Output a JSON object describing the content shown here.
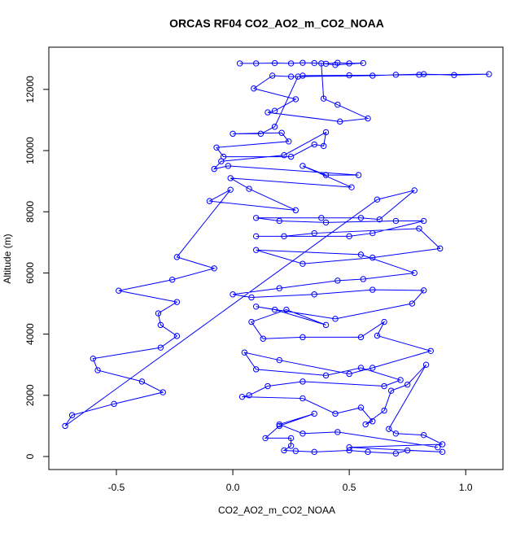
{
  "chart_data": {
    "type": "line",
    "title": "ORCAS RF04 CO2_AO2_m_CO2_NOAA",
    "x_label": "CO2_AO2_m_CO2_NOAA",
    "y_label": "Altitude (m)",
    "color": "#0000ff",
    "xlim": [
      -0.79,
      1.16
    ],
    "ylim": [
      -426,
      13380
    ],
    "xticks": [
      -0.5,
      {
        "value": 0,
        "label": "0.0"
      },
      0.5,
      {
        "value": 1,
        "label": "1.0"
      }
    ],
    "yticks": [
      0,
      2000,
      4000,
      6000,
      8000,
      10000,
      12000
    ],
    "x": [
      0.03,
      0.1,
      0.18,
      0.25,
      0.3,
      0.35,
      0.4,
      0.45,
      0.5,
      0.56,
      0.44,
      0.38,
      0.39,
      0.45,
      0.58,
      0.46,
      0.15,
      0.18,
      0.27,
      0.09,
      0.17,
      0.25,
      0.6,
      0.7,
      0.82,
      0.95,
      1.1,
      0.8,
      0.5,
      0.3,
      0.28,
      0.18,
      0.12,
      0.0,
      0.21,
      0.24,
      -0.07,
      -0.04,
      0.25,
      0.35,
      0.39,
      0.4,
      0.22,
      -0.05,
      -0.08,
      -0.02,
      0.54,
      0.4,
      0.3,
      0.51,
      -0.01,
      0.07,
      0.27,
      -0.1,
      -0.01,
      -0.24,
      -0.08,
      -0.26,
      -0.49,
      -0.24,
      -0.32,
      -0.31,
      -0.24,
      -0.31,
      -0.6,
      -0.58,
      -0.39,
      -0.3,
      -0.51,
      -0.69,
      -0.72,
      0.62,
      0.78,
      0.63,
      0.55,
      0.38,
      0.1,
      0.2,
      0.4,
      0.7,
      0.82,
      0.6,
      0.5,
      0.1,
      0.22,
      0.35,
      0.8,
      0.89,
      0.6,
      0.3,
      0.1,
      0.55,
      0.78,
      0.56,
      0.45,
      0.2,
      0.0,
      0.08,
      0.35,
      0.6,
      0.82,
      0.77,
      0.44,
      0.1,
      0.18,
      0.4,
      0.23,
      0.08,
      0.13,
      0.3,
      0.55,
      0.65,
      0.62,
      0.85,
      0.6,
      0.5,
      0.2,
      0.05,
      0.1,
      0.4,
      0.55,
      0.72,
      0.65,
      0.3,
      0.15,
      0.07,
      0.04,
      0.3,
      0.44,
      0.55,
      0.6,
      0.57,
      0.65,
      0.68,
      0.75,
      0.83,
      0.67,
      0.7,
      0.82,
      0.9,
      0.5,
      0.9,
      0.75,
      0.7,
      0.58,
      0.5,
      0.35,
      0.27,
      0.22,
      0.25,
      0.25,
      0.14,
      0.2,
      0.35,
      0.2,
      0.3,
      0.45,
      0.88
    ],
    "y": [
      12850,
      12850,
      12860,
      12850,
      12870,
      12860,
      12840,
      12870,
      12850,
      12860,
      12800,
      12850,
      11700,
      11500,
      11050,
      10950,
      11250,
      11300,
      11680,
      12030,
      12450,
      12420,
      12450,
      12480,
      12500,
      12470,
      12500,
      12480,
      12460,
      12450,
      12420,
      10780,
      10550,
      10550,
      10580,
      10300,
      10100,
      9800,
      9800,
      10200,
      10150,
      10600,
      9850,
      9650,
      9400,
      9500,
      9200,
      9200,
      9500,
      8800,
      9100,
      8750,
      8050,
      8350,
      8720,
      6520,
      6150,
      5780,
      5420,
      5050,
      4680,
      4300,
      3940,
      3560,
      3200,
      2820,
      2450,
      2100,
      1720,
      1350,
      1000,
      8400,
      8700,
      7750,
      7800,
      7800,
      7800,
      7700,
      7650,
      7700,
      7700,
      7300,
      7200,
      7200,
      7200,
      7300,
      7450,
      6800,
      6500,
      6300,
      6750,
      6600,
      6000,
      5800,
      5750,
      5500,
      5300,
      5200,
      5300,
      5450,
      5430,
      5000,
      4500,
      4900,
      4800,
      4300,
      4800,
      4400,
      3850,
      3900,
      3900,
      4400,
      3950,
      3450,
      2900,
      2700,
      3150,
      3400,
      2850,
      2650,
      2900,
      2500,
      2300,
      2450,
      2300,
      2000,
      1950,
      1900,
      1400,
      1600,
      1150,
      1050,
      1500,
      2150,
      2350,
      3000,
      900,
      750,
      700,
      400,
      300,
      150,
      200,
      100,
      150,
      200,
      150,
      180,
      200,
      350,
      600,
      600,
      1000,
      1400,
      1050,
      750,
      800,
      300
    ]
  }
}
